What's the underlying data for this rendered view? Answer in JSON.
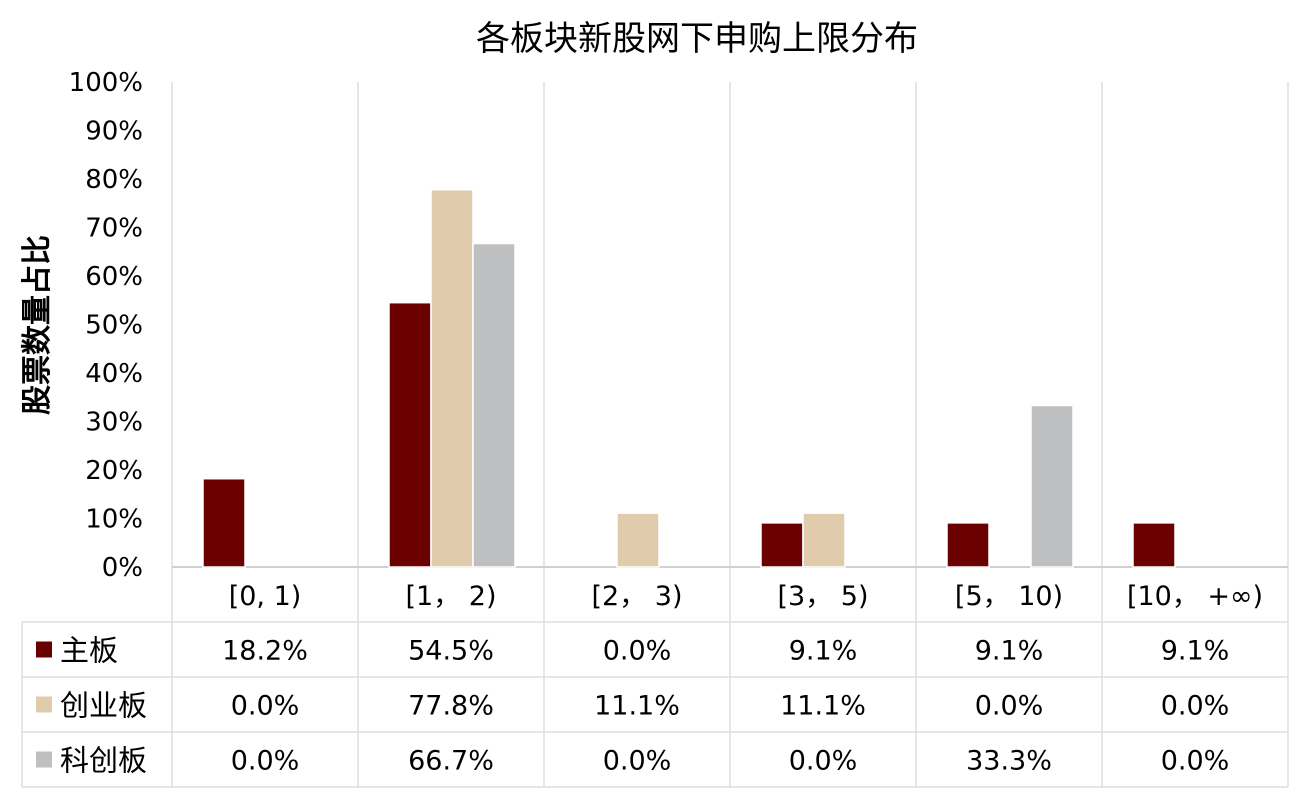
{
  "chart_data": {
    "type": "bar",
    "title": "各板块新股网下申购上限分布",
    "ylabel": "股票数量占比",
    "xlabel": "",
    "ylim": [
      0,
      100
    ],
    "y_ticks": [
      "0%",
      "10%",
      "20%",
      "30%",
      "40%",
      "50%",
      "60%",
      "70%",
      "80%",
      "90%",
      "100%"
    ],
    "categories": [
      "[0, 1)",
      "[1， 2)",
      "[2， 3)",
      "[3， 5)",
      "[5， 10)",
      "[10， +∞)"
    ],
    "series": [
      {
        "name": "主板",
        "color": "#6b0000",
        "values": [
          18.2,
          54.5,
          0.0,
          9.1,
          9.1,
          9.1
        ],
        "labels": [
          "18.2%",
          "54.5%",
          "0.0%",
          "9.1%",
          "9.1%",
          "9.1%"
        ]
      },
      {
        "name": "创业板",
        "color": "#e0cbad",
        "values": [
          0.0,
          77.8,
          11.1,
          11.1,
          0.0,
          0.0
        ],
        "labels": [
          "0.0%",
          "77.8%",
          "11.1%",
          "11.1%",
          "0.0%",
          "0.0%"
        ]
      },
      {
        "name": "科创板",
        "color": "#bdbfc1",
        "values": [
          0.0,
          66.7,
          0.0,
          0.0,
          33.3,
          0.0
        ],
        "labels": [
          "0.0%",
          "66.7%",
          "0.0%",
          "0.0%",
          "33.3%",
          "0.0%"
        ]
      }
    ],
    "grid": "vertical",
    "legend": "data-table"
  }
}
